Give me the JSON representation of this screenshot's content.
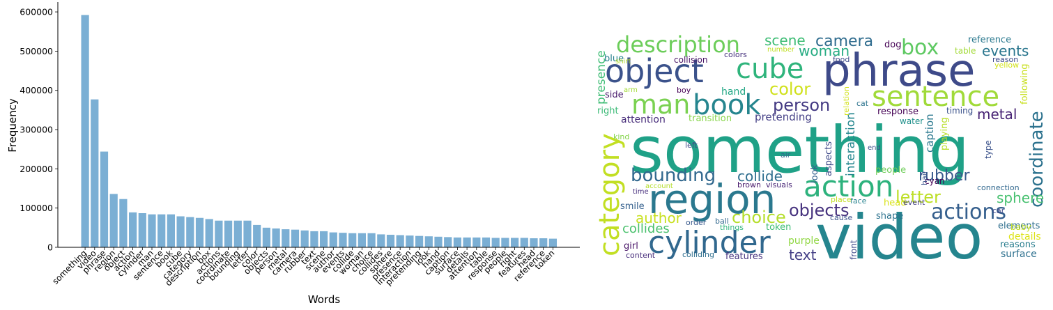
{
  "chart_data": [
    {
      "type": "bar",
      "title": "",
      "xlabel": "Words",
      "ylabel": "Frequency",
      "ylim": [
        0,
        625000
      ],
      "yticks": [
        0,
        100000,
        200000,
        300000,
        400000,
        500000,
        600000
      ],
      "bar_color": "#7bafd4",
      "grid": false,
      "categories": [
        "something",
        "video",
        "phrase",
        "region",
        "object",
        "action",
        "cylinder",
        "man",
        "sentence",
        "book",
        "cube",
        "category",
        "description",
        "box",
        "actions",
        "coordinate",
        "bounding",
        "letter",
        "color",
        "objects",
        "person",
        "metal",
        "camera",
        "rubber",
        "text",
        "scene",
        "author",
        "events",
        "collide",
        "woman",
        "choice",
        "collides",
        "sphere",
        "presence",
        "interaction",
        "pretending",
        "look",
        "hand",
        "caption",
        "surface",
        "details",
        "attention",
        "table",
        "response",
        "people",
        "right",
        "features",
        "head",
        "reference",
        "token"
      ],
      "values": [
        592000,
        377000,
        244000,
        136000,
        123000,
        89000,
        87000,
        84000,
        84000,
        84000,
        79000,
        77000,
        75000,
        72000,
        68000,
        68000,
        68000,
        68000,
        57000,
        50000,
        48000,
        46000,
        45000,
        43000,
        41000,
        41000,
        38000,
        37000,
        36000,
        36000,
        36000,
        33000,
        32000,
        31000,
        30000,
        29000,
        28000,
        27000,
        26000,
        25000,
        25000,
        25000,
        25000,
        24000,
        24000,
        24000,
        24000,
        23000,
        23000,
        22000
      ]
    },
    {
      "type": "wordcloud",
      "words": [
        {
          "text": "something",
          "color": "#1fa187"
        },
        {
          "text": "video",
          "color": "#25858e"
        },
        {
          "text": "phrase",
          "color": "#3e4a89"
        },
        {
          "text": "region",
          "color": "#2a788e"
        },
        {
          "text": "object",
          "color": "#3b528b"
        },
        {
          "text": "cylinder",
          "color": "#31688e"
        },
        {
          "text": "category",
          "color": "#c2df23"
        },
        {
          "text": "action",
          "color": "#2db27d"
        },
        {
          "text": "sentence",
          "color": "#a0da39"
        },
        {
          "text": "cube",
          "color": "#2fb47c"
        },
        {
          "text": "book",
          "color": "#25858e"
        },
        {
          "text": "description",
          "color": "#6ccd5a"
        },
        {
          "text": "man",
          "color": "#7ad151"
        },
        {
          "text": "coordinate",
          "color": "#2c728e"
        },
        {
          "text": "box",
          "color": "#5ec962"
        },
        {
          "text": "actions",
          "color": "#355f8d"
        },
        {
          "text": "bounding",
          "color": "#31688e"
        },
        {
          "text": "color",
          "color": "#d0e11c"
        },
        {
          "text": "person",
          "color": "#443a83"
        },
        {
          "text": "camera",
          "color": "#2f6c8e"
        },
        {
          "text": "letter",
          "color": "#bddf26"
        },
        {
          "text": "objects",
          "color": "#46327e"
        },
        {
          "text": "choice",
          "color": "#b5de2b"
        },
        {
          "text": "author",
          "color": "#c8e020"
        },
        {
          "text": "collide",
          "color": "#2e6e8e"
        },
        {
          "text": "rubber",
          "color": "#38598c"
        },
        {
          "text": "metal",
          "color": "#482475"
        },
        {
          "text": "scene",
          "color": "#3dbc74"
        },
        {
          "text": "woman",
          "color": "#25ab82"
        },
        {
          "text": "events",
          "color": "#2a768e"
        },
        {
          "text": "collides",
          "color": "#4ac16d"
        },
        {
          "text": "sphere",
          "color": "#46c06f"
        },
        {
          "text": "text",
          "color": "#433e85"
        },
        {
          "text": "presence",
          "color": "#3dbc74"
        },
        {
          "text": "interaction",
          "color": "#24868e"
        },
        {
          "text": "pretending",
          "color": "#433e85"
        },
        {
          "text": "caption",
          "color": "#2a788e"
        },
        {
          "text": "attention",
          "color": "#472c7a"
        },
        {
          "text": "hand",
          "color": "#22a785"
        },
        {
          "text": "details",
          "color": "#dde318"
        },
        {
          "text": "surface",
          "color": "#2d708e"
        },
        {
          "text": "response",
          "color": "#440154"
        },
        {
          "text": "people",
          "color": "#6ece58"
        },
        {
          "text": "right",
          "color": "#3aba76"
        },
        {
          "text": "features",
          "color": "#46327e"
        },
        {
          "text": "head",
          "color": "#d8e219"
        },
        {
          "text": "reference",
          "color": "#2a788e"
        },
        {
          "text": "token",
          "color": "#3dbc74"
        },
        {
          "text": "table",
          "color": "#a2da37"
        },
        {
          "text": "shape",
          "color": "#2c728e"
        },
        {
          "text": "elements",
          "color": "#2e6e8e"
        },
        {
          "text": "reasons",
          "color": "#287d8e"
        },
        {
          "text": "purple",
          "color": "#90d743"
        },
        {
          "text": "front",
          "color": "#3e4989"
        },
        {
          "text": "look",
          "color": "#355f8d"
        },
        {
          "text": "aspects",
          "color": "#3e4989"
        },
        {
          "text": "transition",
          "color": "#86d549"
        },
        {
          "text": "type",
          "color": "#3b528b"
        },
        {
          "text": "water",
          "color": "#21918c"
        },
        {
          "text": "cyan",
          "color": "#440154"
        },
        {
          "text": "smile",
          "color": "#34608d"
        },
        {
          "text": "girl",
          "color": "#481467"
        },
        {
          "text": "content",
          "color": "#472d7b"
        },
        {
          "text": "colliding",
          "color": "#2e6e8e"
        },
        {
          "text": "things",
          "color": "#2fb47c"
        },
        {
          "text": "order",
          "color": "#38598c"
        },
        {
          "text": "ball",
          "color": "#31688e"
        },
        {
          "text": "cause",
          "color": "#3b528b"
        },
        {
          "text": "face",
          "color": "#26828e"
        },
        {
          "text": "event",
          "color": "#433e85"
        },
        {
          "text": "car",
          "color": "#3e4989"
        },
        {
          "text": "baby",
          "color": "#c0df25"
        },
        {
          "text": "connection",
          "color": "#31688e"
        },
        {
          "text": "hair",
          "color": "#3b528b"
        },
        {
          "text": "place",
          "color": "#c2df23"
        },
        {
          "text": "brown",
          "color": "#481a6c"
        },
        {
          "text": "visuals",
          "color": "#482576"
        },
        {
          "text": "account",
          "color": "#b5de2b"
        },
        {
          "text": "time",
          "color": "#472f7d"
        },
        {
          "text": "air",
          "color": "#31688e"
        },
        {
          "text": "left",
          "color": "#3e4a89"
        },
        {
          "text": "end",
          "color": "#3b528b"
        },
        {
          "text": "kind",
          "color": "#84d44b"
        },
        {
          "text": "playing",
          "color": "#b8de29"
        },
        {
          "text": "following",
          "color": "#c8e020"
        },
        {
          "text": "timing",
          "color": "#3b528b"
        },
        {
          "text": "cat",
          "color": "#2c738e"
        },
        {
          "text": "relation",
          "color": "#d2e21b"
        },
        {
          "text": "boy",
          "color": "#440154"
        },
        {
          "text": "arm",
          "color": "#a2da37"
        },
        {
          "text": "side",
          "color": "#481a6c"
        },
        {
          "text": "blue",
          "color": "#27808e"
        },
        {
          "text": "shirt",
          "color": "#b8de29"
        },
        {
          "text": "collision",
          "color": "#481467"
        },
        {
          "text": "colors",
          "color": "#46327e"
        },
        {
          "text": "food",
          "color": "#3e4989"
        },
        {
          "text": "number",
          "color": "#c0df25"
        },
        {
          "text": "dog",
          "color": "#440154"
        },
        {
          "text": "reason",
          "color": "#3e4989"
        },
        {
          "text": "yellow",
          "color": "#d2e21b"
        }
      ]
    }
  ]
}
